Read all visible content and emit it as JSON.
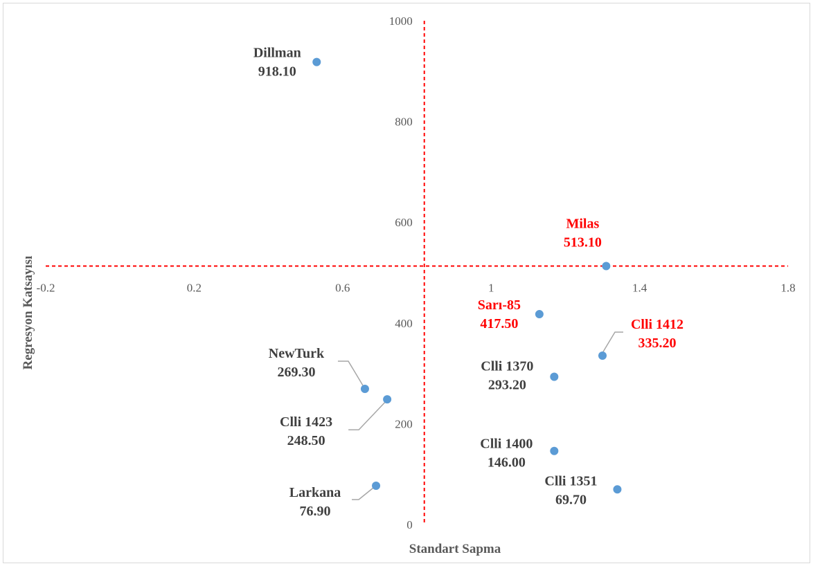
{
  "chart_data": {
    "type": "scatter",
    "title": "",
    "xlabel": "Standart Sapma",
    "ylabel": "Regresyon Katsayısı",
    "xlim": [
      -0.2,
      1.8
    ],
    "ylim": [
      0,
      1000
    ],
    "x_ticks": [
      "-0.2",
      "0.2",
      "0.6",
      "1",
      "1.4",
      "1.8"
    ],
    "y_ticks": [
      "0",
      "200",
      "400",
      "600",
      "800",
      "1000"
    ],
    "reference_lines": {
      "x": 0.82,
      "y": 513.1,
      "color": "#ff0000",
      "style": "dashed"
    },
    "marker_color": "#5b9bd5",
    "label_colors": {
      "normal": "#404040",
      "highlight": "#ff0000"
    },
    "points": [
      {
        "name": "Dillman",
        "value": "918.10",
        "x": 0.53,
        "y": 918.1,
        "highlight": false
      },
      {
        "name": "Milas",
        "value": "513.10",
        "x": 1.31,
        "y": 513.1,
        "highlight": true
      },
      {
        "name": "Sarı-85",
        "value": "417.50",
        "x": 1.13,
        "y": 417.5,
        "highlight": true
      },
      {
        "name": "Clli 1412",
        "value": "335.20",
        "x": 1.3,
        "y": 335.2,
        "highlight": true
      },
      {
        "name": "Clli 1370",
        "value": "293.20",
        "x": 1.17,
        "y": 293.2,
        "highlight": false
      },
      {
        "name": "NewTurk",
        "value": "269.30",
        "x": 0.66,
        "y": 269.3,
        "highlight": false
      },
      {
        "name": "Clli 1423",
        "value": "248.50",
        "x": 0.72,
        "y": 248.5,
        "highlight": false
      },
      {
        "name": "Clli 1400",
        "value": "146.00",
        "x": 1.17,
        "y": 146.0,
        "highlight": false
      },
      {
        "name": "Larkana",
        "value": "76.90",
        "x": 0.69,
        "y": 76.9,
        "highlight": false
      },
      {
        "name": "Clli 1351",
        "value": "69.70",
        "x": 1.34,
        "y": 69.7,
        "highlight": false
      }
    ]
  }
}
